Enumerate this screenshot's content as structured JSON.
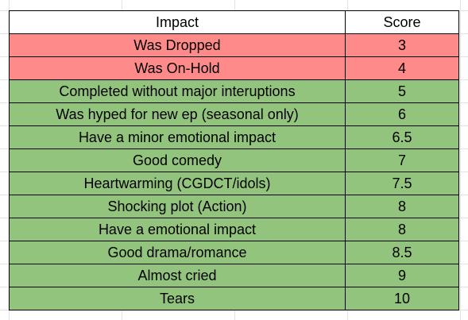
{
  "table": {
    "headers": {
      "impact": "Impact",
      "score": "Score"
    },
    "colors": {
      "negative": "#ff8a8a",
      "positive": "#93c47d",
      "header": "#ffffff"
    },
    "rows": [
      {
        "impact": "Was Dropped",
        "score": "3",
        "status": "negative"
      },
      {
        "impact": "Was On-Hold",
        "score": "4",
        "status": "negative"
      },
      {
        "impact": "Completed without major interuptions",
        "score": "5",
        "status": "positive"
      },
      {
        "impact": "Was hyped for new ep (seasonal only)",
        "score": "6",
        "status": "positive"
      },
      {
        "impact": "Have a minor emotional impact",
        "score": "6.5",
        "status": "positive"
      },
      {
        "impact": "Good comedy",
        "score": "7",
        "status": "positive"
      },
      {
        "impact": "Heartwarming (CGDCT/idols)",
        "score": "7.5",
        "status": "positive"
      },
      {
        "impact": "Shocking plot (Action)",
        "score": "8",
        "status": "positive"
      },
      {
        "impact": "Have a emotional impact",
        "score": "8",
        "status": "positive"
      },
      {
        "impact": "Good drama/romance",
        "score": "8.5",
        "status": "positive"
      },
      {
        "impact": "Almost cried",
        "score": "9",
        "status": "positive"
      },
      {
        "impact": "Tears",
        "score": "10",
        "status": "positive"
      }
    ]
  }
}
